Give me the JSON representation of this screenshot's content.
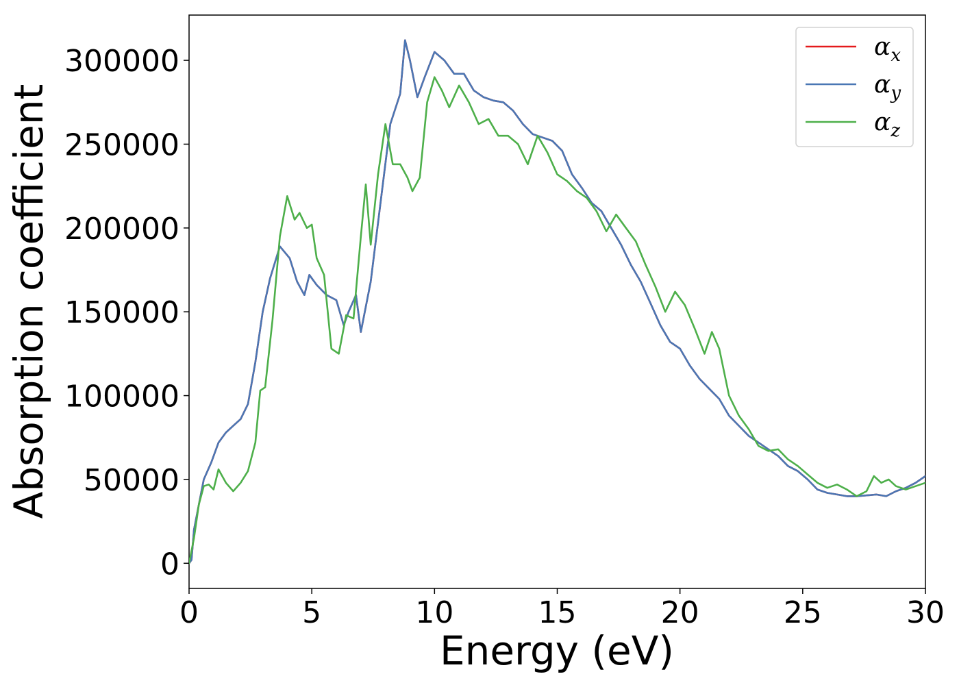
{
  "chart_data": {
    "type": "line",
    "title": "",
    "xlabel": "Energy (eV)",
    "ylabel": "Absorption coefficient",
    "xlim": [
      0,
      30
    ],
    "ylim": [
      -15000,
      327000
    ],
    "xticks": [
      0,
      5,
      10,
      15,
      20,
      25,
      30
    ],
    "xtick_labels": [
      "0",
      "5",
      "10",
      "15",
      "20",
      "25",
      "30"
    ],
    "yticks": [
      0,
      50000,
      100000,
      150000,
      200000,
      250000,
      300000
    ],
    "ytick_labels": [
      "0",
      "50000",
      "100000",
      "150000",
      "200000",
      "250000",
      "300000"
    ],
    "grid": false,
    "legend_position": "top-right",
    "series": [
      {
        "name": "α_x",
        "legend_base": "α",
        "legend_sub": "x",
        "color": "#e41a1c",
        "x": [
          0,
          0.1,
          0.2,
          0.4,
          0.6,
          0.9,
          1.2,
          1.5,
          1.8,
          2.1,
          2.4,
          2.7,
          3.0,
          3.3,
          3.7,
          4.1,
          4.4,
          4.7,
          4.9,
          5.2,
          5.6,
          6.0,
          6.3,
          6.5,
          6.8,
          7.0,
          7.4,
          7.8,
          8.2,
          8.6,
          8.8,
          9.0,
          9.3,
          9.6,
          10.0,
          10.4,
          10.8,
          11.2,
          11.6,
          12.0,
          12.4,
          12.8,
          13.2,
          13.6,
          14.0,
          14.4,
          14.8,
          15.2,
          15.6,
          16.0,
          16.4,
          16.8,
          17.2,
          17.6,
          18.0,
          18.4,
          18.8,
          19.2,
          19.6,
          20.0,
          20.4,
          20.8,
          21.2,
          21.6,
          22.0,
          22.4,
          22.8,
          23.2,
          23.6,
          24.0,
          24.4,
          24.8,
          25.2,
          25.6,
          26.0,
          26.4,
          26.8,
          27.2,
          27.6,
          28.0,
          28.4,
          28.8,
          29.2,
          29.6,
          30.0
        ],
        "y": [
          0,
          2000,
          20000,
          35000,
          50000,
          60000,
          72000,
          78000,
          82000,
          86000,
          95000,
          120000,
          150000,
          170000,
          189000,
          182000,
          168000,
          160000,
          172000,
          166000,
          160000,
          157000,
          142000,
          150000,
          160000,
          138000,
          168000,
          215000,
          262000,
          280000,
          312000,
          300000,
          278000,
          290000,
          305000,
          300000,
          292000,
          292000,
          282000,
          278000,
          276000,
          275000,
          270000,
          262000,
          256000,
          254000,
          252000,
          246000,
          232000,
          224000,
          215000,
          210000,
          200000,
          190000,
          178000,
          168000,
          155000,
          142000,
          132000,
          128000,
          118000,
          110000,
          104000,
          98000,
          88000,
          82000,
          76000,
          72000,
          68000,
          64000,
          58000,
          55000,
          50000,
          44000,
          42000,
          41000,
          40000,
          40000,
          40500,
          41000,
          40000,
          43000,
          45000,
          48000,
          52000
        ]
      },
      {
        "name": "α_y",
        "legend_base": "α",
        "legend_sub": "y",
        "color": "#4a77b4",
        "x": [
          0,
          0.1,
          0.2,
          0.4,
          0.6,
          0.9,
          1.2,
          1.5,
          1.8,
          2.1,
          2.4,
          2.7,
          3.0,
          3.3,
          3.7,
          4.1,
          4.4,
          4.7,
          4.9,
          5.2,
          5.6,
          6.0,
          6.3,
          6.5,
          6.8,
          7.0,
          7.4,
          7.8,
          8.2,
          8.6,
          8.8,
          9.0,
          9.3,
          9.6,
          10.0,
          10.4,
          10.8,
          11.2,
          11.6,
          12.0,
          12.4,
          12.8,
          13.2,
          13.6,
          14.0,
          14.4,
          14.8,
          15.2,
          15.6,
          16.0,
          16.4,
          16.8,
          17.2,
          17.6,
          18.0,
          18.4,
          18.8,
          19.2,
          19.6,
          20.0,
          20.4,
          20.8,
          21.2,
          21.6,
          22.0,
          22.4,
          22.8,
          23.2,
          23.6,
          24.0,
          24.4,
          24.8,
          25.2,
          25.6,
          26.0,
          26.4,
          26.8,
          27.2,
          27.6,
          28.0,
          28.4,
          28.8,
          29.2,
          29.6,
          30.0
        ],
        "y": [
          0,
          2000,
          20000,
          35000,
          50000,
          60000,
          72000,
          78000,
          82000,
          86000,
          95000,
          120000,
          150000,
          170000,
          189000,
          182000,
          168000,
          160000,
          172000,
          166000,
          160000,
          157000,
          142000,
          150000,
          160000,
          138000,
          168000,
          215000,
          262000,
          280000,
          312000,
          300000,
          278000,
          290000,
          305000,
          300000,
          292000,
          292000,
          282000,
          278000,
          276000,
          275000,
          270000,
          262000,
          256000,
          254000,
          252000,
          246000,
          232000,
          224000,
          215000,
          210000,
          200000,
          190000,
          178000,
          168000,
          155000,
          142000,
          132000,
          128000,
          118000,
          110000,
          104000,
          98000,
          88000,
          82000,
          76000,
          72000,
          68000,
          64000,
          58000,
          55000,
          50000,
          44000,
          42000,
          41000,
          40000,
          40000,
          40500,
          41000,
          40000,
          43000,
          45000,
          48000,
          52000
        ]
      },
      {
        "name": "α_z",
        "legend_base": "α",
        "legend_sub": "z",
        "color": "#4daf4a",
        "x": [
          0,
          0.2,
          0.4,
          0.6,
          0.8,
          1.0,
          1.2,
          1.5,
          1.8,
          2.1,
          2.4,
          2.7,
          2.9,
          3.1,
          3.4,
          3.7,
          4.0,
          4.3,
          4.5,
          4.8,
          5.0,
          5.2,
          5.5,
          5.8,
          6.1,
          6.4,
          6.7,
          7.0,
          7.2,
          7.4,
          7.7,
          8.0,
          8.3,
          8.6,
          8.9,
          9.1,
          9.4,
          9.7,
          10.0,
          10.3,
          10.6,
          11.0,
          11.4,
          11.8,
          12.2,
          12.6,
          13.0,
          13.4,
          13.8,
          14.2,
          14.6,
          15.0,
          15.4,
          15.8,
          16.2,
          16.6,
          17.0,
          17.4,
          17.8,
          18.2,
          18.6,
          19.0,
          19.4,
          19.8,
          20.2,
          20.6,
          21.0,
          21.3,
          21.6,
          22.0,
          22.4,
          22.8,
          23.2,
          23.6,
          24.0,
          24.4,
          24.8,
          25.2,
          25.6,
          26.0,
          26.4,
          26.8,
          27.2,
          27.6,
          27.9,
          28.2,
          28.5,
          28.8,
          29.2,
          29.6,
          30.0
        ],
        "y": [
          0,
          15000,
          35000,
          46000,
          47000,
          44000,
          56000,
          48000,
          43000,
          48000,
          55000,
          72000,
          103000,
          105000,
          145000,
          195000,
          219000,
          205000,
          209000,
          200000,
          202000,
          182000,
          172000,
          128000,
          125000,
          148000,
          146000,
          195000,
          226000,
          190000,
          232000,
          262000,
          238000,
          238000,
          230000,
          222000,
          230000,
          275000,
          290000,
          282000,
          272000,
          285000,
          275000,
          262000,
          265000,
          255000,
          255000,
          250000,
          238000,
          255000,
          245000,
          232000,
          228000,
          222000,
          218000,
          210000,
          198000,
          208000,
          200000,
          192000,
          178000,
          165000,
          150000,
          162000,
          154000,
          140000,
          125000,
          138000,
          128000,
          100000,
          88000,
          80000,
          70000,
          67000,
          68000,
          62000,
          58000,
          53000,
          48000,
          45000,
          47000,
          44000,
          40000,
          43000,
          52000,
          48000,
          50000,
          46000,
          44000,
          46000,
          48000
        ]
      }
    ]
  }
}
